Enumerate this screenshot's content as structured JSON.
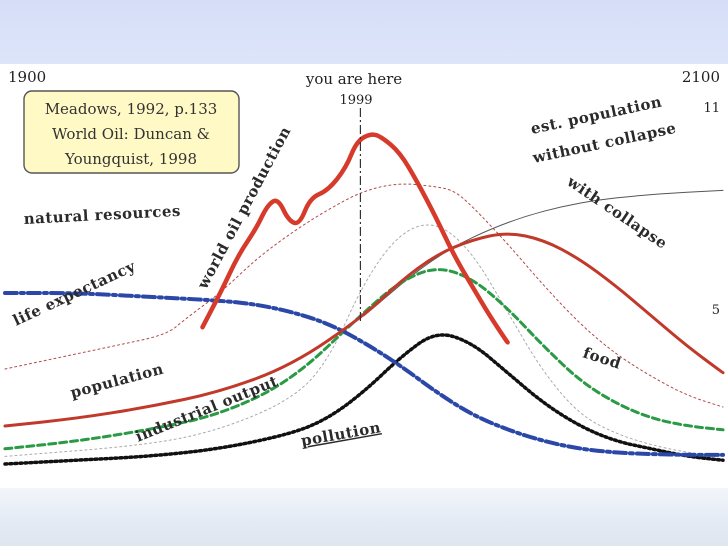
{
  "chart_data": {
    "type": "line",
    "x_start_label": "1900",
    "x_end_label": "2100",
    "xlim": [
      1900,
      2100
    ],
    "marker": {
      "label": "you are here",
      "year_label": "1999",
      "x": 1999
    },
    "source_note": [
      "Meadows, 1992, p.133",
      "World Oil: Duncan &",
      "Youngquist, 1998"
    ],
    "right_edge_labels": {
      "top": "11",
      "bottom": "5"
    },
    "series": [
      {
        "name": "natural resources",
        "style": "dash-dot",
        "color": "#2b47a8",
        "x": [
          1900,
          1920,
          1940,
          1960,
          1970,
          1980,
          1990,
          2000,
          2010,
          2020,
          2030,
          2040,
          2050,
          2060,
          2070,
          2080,
          2090,
          2100
        ],
        "y": [
          0.45,
          0.45,
          0.44,
          0.43,
          0.42,
          0.4,
          0.37,
          0.32,
          0.26,
          0.19,
          0.13,
          0.09,
          0.06,
          0.04,
          0.03,
          0.026,
          0.024,
          0.024
        ]
      },
      {
        "name": "life expectancy",
        "style": "dotted",
        "color": "#b44848",
        "x": [
          1900,
          1915,
          1930,
          1945,
          1950,
          1960,
          1970,
          1980,
          1990,
          2000,
          2010,
          2020,
          2025,
          2030,
          2040,
          2050,
          2060,
          2070,
          2080,
          2090,
          2100
        ],
        "y": [
          0.25,
          0.28,
          0.31,
          0.34,
          0.38,
          0.45,
          0.54,
          0.61,
          0.67,
          0.72,
          0.74,
          0.73,
          0.72,
          0.68,
          0.58,
          0.47,
          0.37,
          0.29,
          0.23,
          0.18,
          0.15
        ]
      },
      {
        "name": "population",
        "style": "solid",
        "color": "#c0392b",
        "x": [
          1900,
          1920,
          1940,
          1960,
          1980,
          2000,
          2010,
          2020,
          2030,
          2040,
          2050,
          2060,
          2070,
          2080,
          2090,
          2100
        ],
        "y": [
          0.1,
          0.12,
          0.15,
          0.19,
          0.26,
          0.39,
          0.48,
          0.55,
          0.59,
          0.61,
          0.59,
          0.54,
          0.47,
          0.39,
          0.31,
          0.24
        ]
      },
      {
        "name": "est. population without collapse",
        "style": "solid",
        "color": "#555555",
        "x": [
          2000,
          2020,
          2040,
          2060,
          2080,
          2100
        ],
        "y": [
          0.39,
          0.55,
          0.64,
          0.69,
          0.71,
          0.72
        ]
      },
      {
        "name": "industrial output",
        "style": "dashed",
        "color": "#2a9a44",
        "x": [
          1900,
          1920,
          1940,
          1960,
          1980,
          2000,
          2010,
          2020,
          2030,
          2040,
          2050,
          2060,
          2070,
          2080,
          2090,
          2100
        ],
        "y": [
          0.04,
          0.06,
          0.09,
          0.13,
          0.22,
          0.4,
          0.48,
          0.52,
          0.49,
          0.41,
          0.31,
          0.22,
          0.16,
          0.12,
          0.1,
          0.09
        ]
      },
      {
        "name": "food",
        "style": "dotted",
        "color": "#aaaaaa",
        "x": [
          1900,
          1940,
          1960,
          1980,
          1990,
          2000,
          2010,
          2020,
          2030,
          2040,
          2050,
          2060,
          2070,
          2080,
          2090,
          2100
        ],
        "y": [
          0.02,
          0.05,
          0.09,
          0.17,
          0.27,
          0.48,
          0.61,
          0.64,
          0.56,
          0.4,
          0.24,
          0.13,
          0.08,
          0.05,
          0.03,
          0.02
        ]
      },
      {
        "name": "world oil production",
        "style": "solid",
        "color": "#d63a2b",
        "x": [
          1955,
          1960,
          1965,
          1970,
          1973,
          1976,
          1979,
          1982,
          1985,
          1990,
          1995,
          1998,
          2002,
          2005,
          2010,
          2015,
          2020,
          2025,
          2030,
          2035,
          2040
        ],
        "y": [
          0.36,
          0.45,
          0.55,
          0.62,
          0.68,
          0.7,
          0.64,
          0.63,
          0.7,
          0.72,
          0.78,
          0.85,
          0.87,
          0.86,
          0.82,
          0.74,
          0.65,
          0.55,
          0.47,
          0.39,
          0.32
        ]
      },
      {
        "name": "pollution",
        "style": "dotted",
        "color": "#111111",
        "x": [
          1900,
          1920,
          1940,
          1960,
          1980,
          1990,
          2000,
          2010,
          2020,
          2030,
          2040,
          2050,
          2060,
          2070,
          2080,
          2090,
          2100
        ],
        "y": [
          0.0,
          0.01,
          0.02,
          0.04,
          0.08,
          0.12,
          0.19,
          0.28,
          0.35,
          0.32,
          0.24,
          0.16,
          0.1,
          0.06,
          0.04,
          0.02,
          0.01
        ]
      }
    ]
  }
}
